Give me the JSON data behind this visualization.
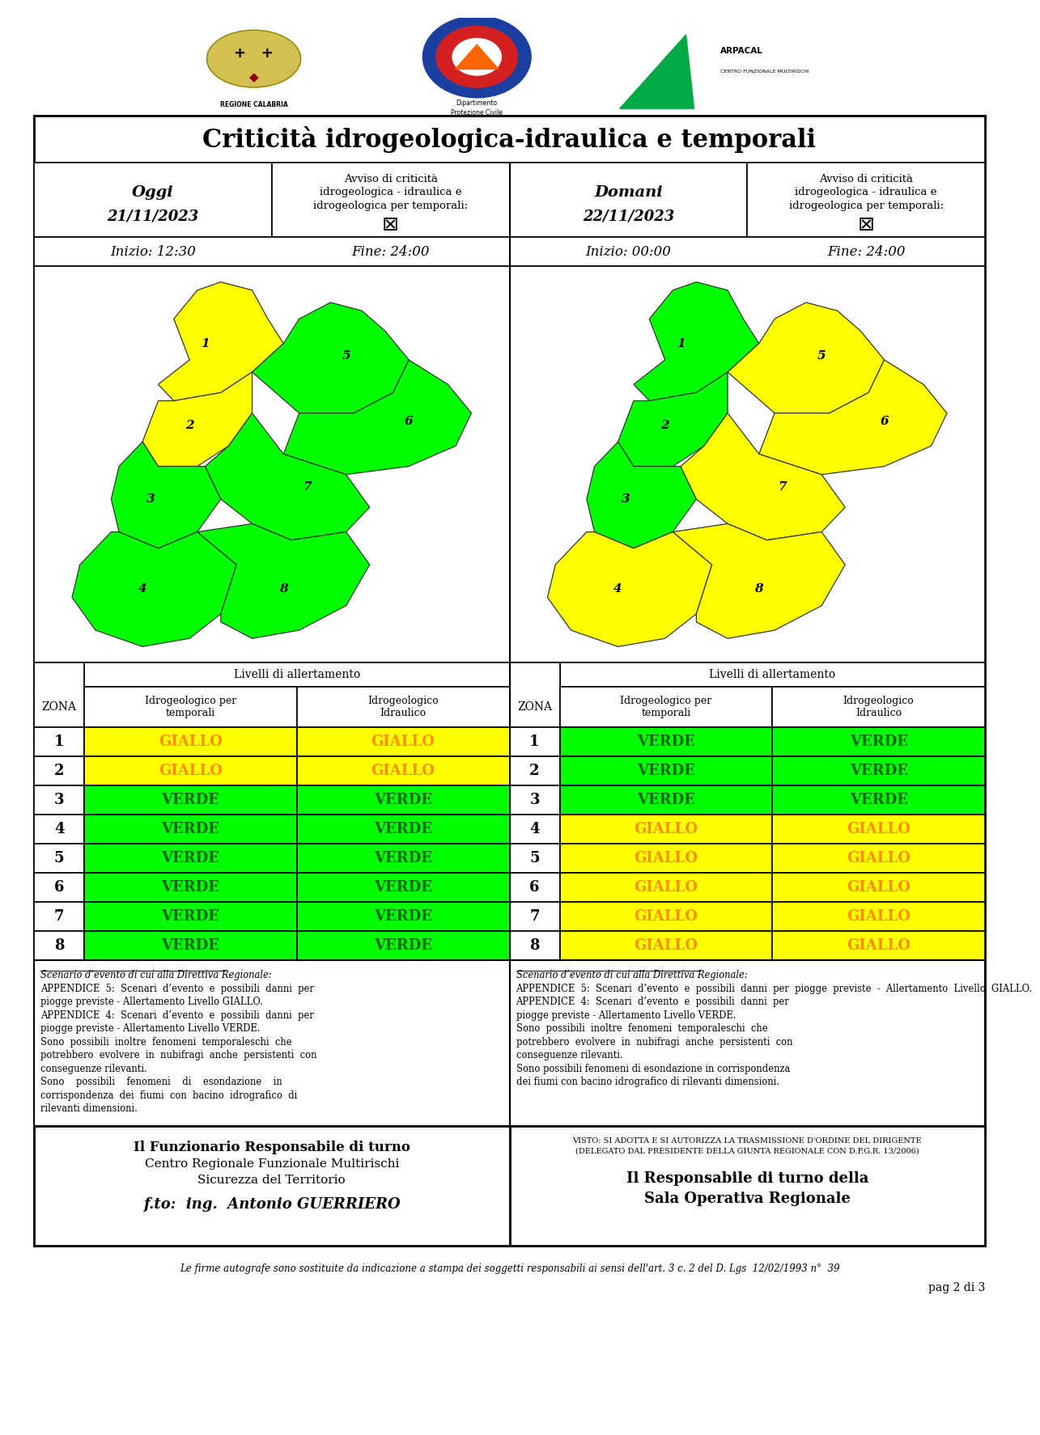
{
  "title": "Criticità idrogeologica-idraulica e temporali",
  "oggi_date": "21/11/2023",
  "domani_date": "22/11/2023",
  "oggi_inizio": "12:30",
  "oggi_fine": "24:00",
  "domani_inizio": "00:00",
  "domani_fine": "24:00",
  "zones": [
    1,
    2,
    3,
    4,
    5,
    6,
    7,
    8
  ],
  "oggi_temp": [
    "GIALLO",
    "GIALLO",
    "VERDE",
    "VERDE",
    "VERDE",
    "VERDE",
    "VERDE",
    "VERDE"
  ],
  "oggi_idr": [
    "GIALLO",
    "GIALLO",
    "VERDE",
    "VERDE",
    "VERDE",
    "VERDE",
    "VERDE",
    "VERDE"
  ],
  "domani_temp": [
    "VERDE",
    "VERDE",
    "VERDE",
    "GIALLO",
    "GIALLO",
    "GIALLO",
    "GIALLO",
    "GIALLO"
  ],
  "domani_idr": [
    "VERDE",
    "VERDE",
    "VERDE",
    "GIALLO",
    "GIALLO",
    "GIALLO",
    "GIALLO",
    "GIALLO"
  ],
  "color_giallo": "#FFFF00",
  "color_verde": "#00FF00",
  "color_text_giallo": "#FF8C00",
  "color_text_verde": "#006400",
  "oggi_zone_colors": [
    "#FFFF00",
    "#FFFF00",
    "#00FF00",
    "#00FF00",
    "#00FF00",
    "#00FF00",
    "#00FF00",
    "#00FF00"
  ],
  "domani_zone_colors": [
    "#00FF00",
    "#00FF00",
    "#00FF00",
    "#FFFF00",
    "#FFFF00",
    "#FFFF00",
    "#FFFF00",
    "#FFFF00"
  ],
  "footer_left_bold": "Il Funzionario Responsabile di turno",
  "footer_left_line2": "Centro Regionale Funzionale Multirischi",
  "footer_left_line3": "Sicurezza del Territorio",
  "footer_left_italic": "f.to:  ing.  Antonio GUERRIERO",
  "footer_right_small1": "VISTO: SI ADOTTA E SI AUTORIZZA LA TRASMISSIONE D'ORDINE DEL DIRIGENTE",
  "footer_right_small2": "(DELEGATO DAL PRESIDENTE DELLA GIUNTA REGIONALE CON D.P.G.R. 13/2006)",
  "footer_right_bold": "Il Responsabile di turno della\nSala Operativa Regionale",
  "bottom_text": "Le firme autografe sono sostituite da indicazione a stampa dei soggetti responsabili ai sensi dell'art. 3 c. 2 del D. Lgs  12/02/1993 n°  39",
  "page_text": "pag 2 di 3",
  "scenario_left_lines": [
    [
      "Scenario d’evento di cui alla Direttiva Regionale:",
      true,
      true
    ],
    [
      "APPENDICE  5:  Scenari  d’evento  e  possibili  danni  per",
      false,
      false
    ],
    [
      "piogge previste - Allertamento Livello GIALLO.",
      false,
      false
    ],
    [
      "APPENDICE  4:  Scenari  d’evento  e  possibili  danni  per",
      false,
      false
    ],
    [
      "piogge previste - Allertamento Livello VERDE.",
      false,
      false
    ],
    [
      "Sono  possibili  inoltre  fenomeni  temporaleschi  che",
      false,
      false
    ],
    [
      "potrebbero  evolvere  in  nubifragi  anche  persistenti  con",
      false,
      false
    ],
    [
      "conseguenze rilevanti.",
      false,
      false
    ],
    [
      "Sono    possibili    fenomeni    di    esondazione    in",
      false,
      false
    ],
    [
      "corrispondenza  dei  fiumi  con  bacino  idrografico  di",
      false,
      false
    ],
    [
      "rilevanti dimensioni.",
      false,
      false
    ]
  ],
  "scenario_right_lines": [
    [
      "Scenario d’evento di cui alla Direttiva Regionale:",
      true,
      true
    ],
    [
      "APPENDICE  5:  Scenari  d’evento  e  possibili  danni  per  piogge  previste  -  Allertamento  Livello  GIALLO.",
      false,
      false
    ],
    [
      "APPENDICE  4:  Scenari  d’evento  e  possibili  danni  per",
      false,
      false
    ],
    [
      "piogge previste - Allertamento Livello VERDE.",
      false,
      false
    ],
    [
      "Sono  possibili  inoltre  fenomeni  temporaleschi  che",
      false,
      false
    ],
    [
      "potrebbero  evolvere  in  nubifragi  anche  persistenti  con",
      false,
      false
    ],
    [
      "conseguenze rilevanti.",
      false,
      false
    ],
    [
      "Sono possibili fenomeni di esondazione in corrispondenza",
      false,
      false
    ],
    [
      "dei fiumi con bacino idrografico di rilevanti dimensioni.",
      false,
      false
    ]
  ]
}
